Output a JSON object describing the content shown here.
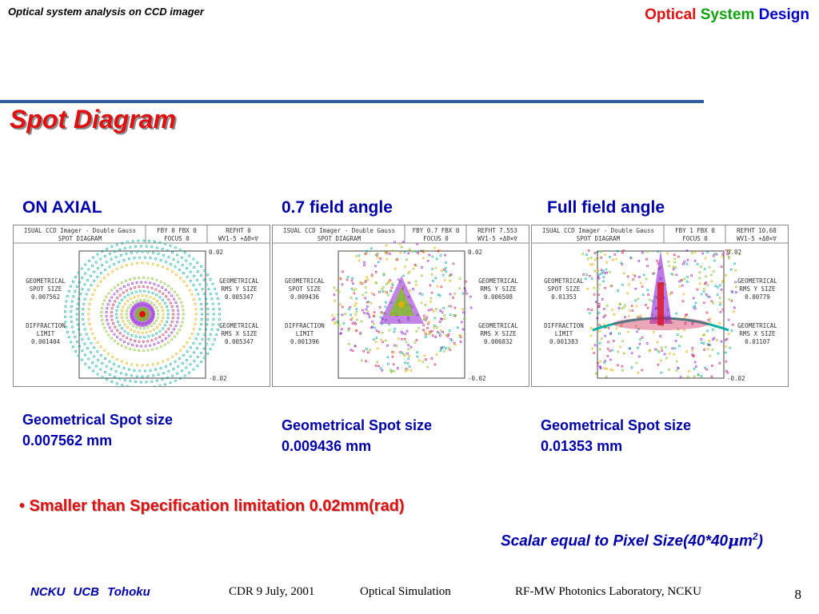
{
  "header": {
    "subtitle": "Optical system analysis on CCD imager",
    "brand": [
      {
        "text": "Optical",
        "color": "#e01010"
      },
      {
        "text": "System",
        "color": "#10a010"
      },
      {
        "text": "Design",
        "color": "#0000c8"
      }
    ]
  },
  "title": "Spot Diagram",
  "panels": [
    {
      "label": "ON AXIAL",
      "head": [
        "ISUAL CCD Imager - Double Gauss",
        "SPOT DIAGRAM",
        "FBY 0 FBX 0",
        "FOCUS 0",
        "REFHT 0",
        "WV1-5 +ΔΘ×∇"
      ],
      "scale_top": "0.02",
      "scale_bottom": "-0.02",
      "left": [
        "GEOMETRICAL",
        "SPOT SIZE",
        "0.007562",
        "DIFFRACTION",
        "LIMIT",
        "0.001404"
      ],
      "right": [
        "GEOMETRICAL",
        "RMS Y SIZE",
        "0.005347",
        "GEOMETRICAL",
        "RMS X SIZE",
        "0.005347"
      ],
      "caption": [
        "Geometrical Spot size",
        "0.007562 mm"
      ]
    },
    {
      "label": "0.7 field angle",
      "head": [
        "ISUAL CCD Imager - Double Gauss",
        "SPOT DIAGRAM",
        "FBY 0.7 FBX 0",
        "FOCUS 0",
        "REFHT 7.553",
        "WV1-5 +ΔΘ×∇"
      ],
      "scale_top": "0.02",
      "scale_bottom": "-0.02",
      "left": [
        "GEOMETRICAL",
        "SPOT SIZE",
        "0.009436",
        "DIFFRACTION",
        "LIMIT",
        "0.001396"
      ],
      "right": [
        "GEOMETRICAL",
        "RMS Y SIZE",
        "0.006508",
        "GEOMETRICAL",
        "RMS X SIZE",
        "0.006832"
      ],
      "caption": [
        "Geometrical Spot size",
        "0.009436 mm"
      ]
    },
    {
      "label": "Full field angle",
      "head": [
        "ISUAL CCD Imager - Double Gauss",
        "SPOT DIAGRAM",
        "FBY 1 FBX 0",
        "FOCUS 0",
        "REFHT 10.68",
        "WV1-5 +ΔΘ×∇"
      ],
      "scale_top": "0.02",
      "scale_bottom": "-0.02",
      "left": [
        "GEOMETRICAL",
        "SPOT SIZE",
        "0.01353",
        "DIFFRACTION",
        "LIMIT",
        "0.001383"
      ],
      "right": [
        "GEOMETRICAL",
        "RMS Y SIZE",
        "0.00779",
        "GEOMETRICAL",
        "RMS X SIZE",
        "0.01107"
      ],
      "caption": [
        "Geometrical Spot size",
        "0.01353 mm"
      ]
    }
  ],
  "bullet": "• Smaller than Specification limitation 0.02mm(rad)",
  "scalar": {
    "before": "Scalar equal  to Pixel Size(40*40",
    "mu": "μ",
    "m": "m",
    "sup": "2",
    "after": ")"
  },
  "footer": {
    "left": "NCKU  UCB  Tohoku",
    "cdr": "CDR   9 July, 2001",
    "sim": "Optical Simulation",
    "lab": "RF-MW Photonics Laboratory,   NCKU",
    "page": "8"
  },
  "colors": {
    "accent_red": "#e01010",
    "accent_blue": "#0000a8",
    "rule": "#2f5fa0"
  }
}
